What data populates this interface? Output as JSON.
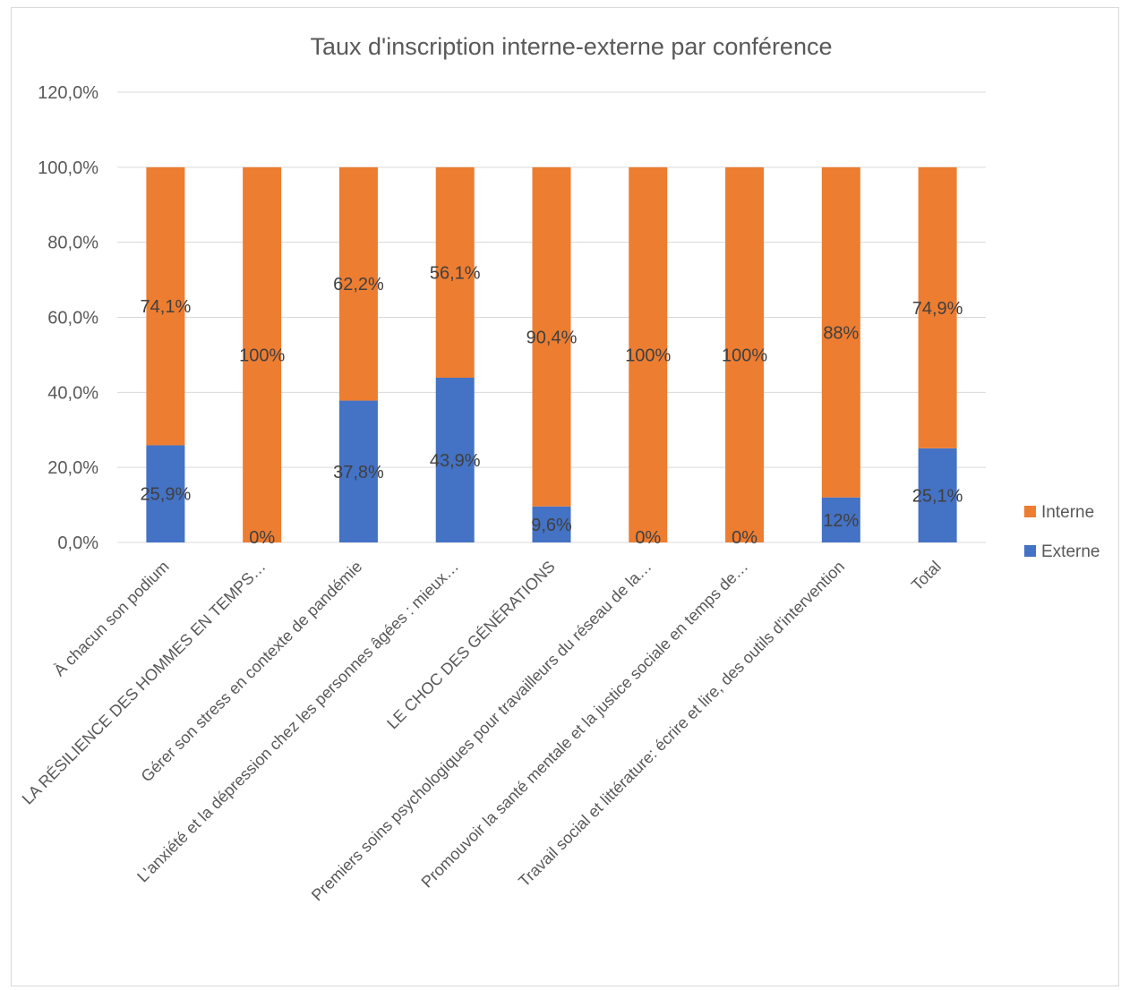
{
  "chart_data": {
    "type": "bar",
    "stacked": true,
    "percent_stacked": true,
    "title": "Taux d'inscription interne-externe par conférence",
    "xlabel": "",
    "ylabel": "",
    "ylim": [
      0,
      120
    ],
    "y_ticks": [
      "0,0%",
      "20,0%",
      "40,0%",
      "60,0%",
      "80,0%",
      "100,0%",
      "120,0%"
    ],
    "grid": true,
    "legend_position": "right",
    "categories": [
      "À chacun son podium",
      "LA RÉSILIENCE DES HOMMES EN TEMPS…",
      "Gérer son stress en contexte de pandémie",
      "L'anxiété et la dépression chez les personnes âgées : mieux…",
      "LE CHOC DES GÉNÉRATIONS",
      "Premiers soins psychologiques pour travailleurs du réseau de la…",
      "Promouvoir la santé mentale et la justice sociale en temps de…",
      "Travail social et littérature: écrire et lire, des outils d'intervention",
      "Total"
    ],
    "series": [
      {
        "name": "Externe",
        "color": "#4472c4",
        "values": [
          25.9,
          0,
          37.8,
          43.9,
          9.6,
          0,
          0,
          12,
          25.1
        ],
        "labels": [
          "25,9%",
          "0%",
          "37,8%",
          "43,9%",
          "9,6%",
          "0%",
          "0%",
          "12%",
          "25,1%"
        ]
      },
      {
        "name": "Interne",
        "color": "#ed7d31",
        "values": [
          74.1,
          100,
          62.2,
          56.1,
          90.4,
          100,
          100,
          88,
          74.9
        ],
        "labels": [
          "74,1%",
          "100%",
          "62,2%",
          "56,1%",
          "90,4%",
          "100%",
          "100%",
          "88%",
          "74,9%"
        ]
      }
    ],
    "legend": [
      "Interne",
      "Externe"
    ]
  }
}
